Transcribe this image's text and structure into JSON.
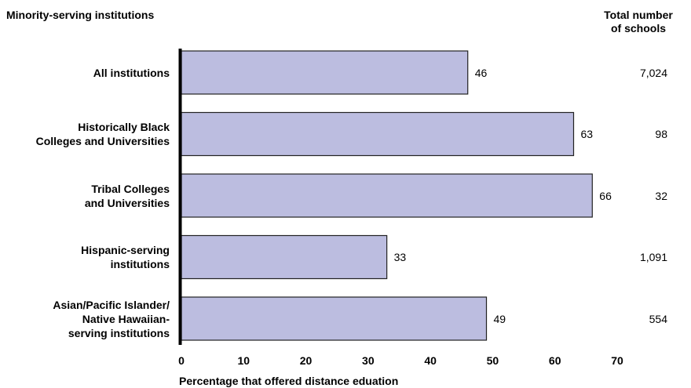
{
  "chart_data": {
    "type": "bar",
    "orientation": "horizontal",
    "title": "",
    "category_header": "Minority-serving institutions",
    "count_header": [
      "Total number",
      "of schools"
    ],
    "xlabel": "Percentage that offered distance eduation",
    "xlim": [
      0,
      70
    ],
    "xticks": [
      "0",
      "10",
      "20",
      "30",
      "40",
      "50",
      "60",
      "70"
    ],
    "categories": [
      [
        "All institutions"
      ],
      [
        "Historically Black",
        "Colleges and Universities"
      ],
      [
        "Tribal Colleges",
        "and Universities"
      ],
      [
        "Hispanic-serving",
        "institutions"
      ],
      [
        "Asian/Pacific Islander/",
        "Native Hawaiian-",
        "serving institutions"
      ]
    ],
    "values": [
      46,
      63,
      66,
      33,
      49
    ],
    "value_labels": [
      "46",
      "63",
      "66",
      "33",
      "49"
    ],
    "total_schools": [
      "7,024",
      "98",
      "32",
      "1,091",
      "554"
    ],
    "colors": {
      "bar_fill": "#bcbde0",
      "bar_stroke": "#222222",
      "axis": "#000000"
    },
    "grid": false,
    "legend": "none"
  }
}
